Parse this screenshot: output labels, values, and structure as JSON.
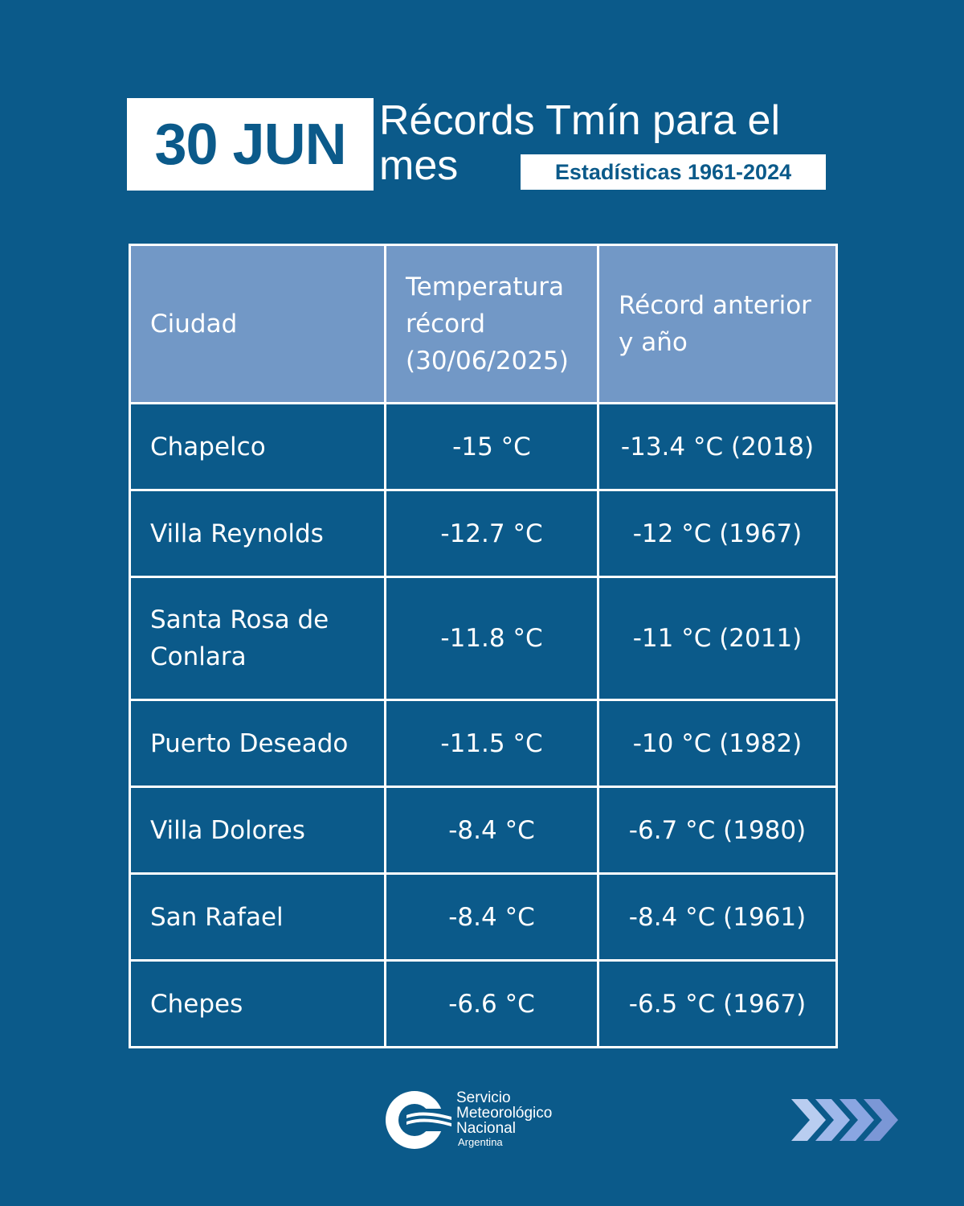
{
  "header": {
    "date": "30 JUN",
    "title": "Récords Tmín para el mes",
    "badge": "Estadísticas 1961-2024"
  },
  "table": {
    "header": [
      "Ciudad",
      "Temperatura récord (30/06/2025)",
      "Récord anterior y año"
    ],
    "rows": [
      [
        "Chapelco",
        "-15 °C",
        "-13.4 °C (2018)"
      ],
      [
        "Villa Reynolds",
        "-12.7 °C",
        "-12 °C (1967)"
      ],
      [
        "Santa Rosa de Conlara",
        "-11.8 °C",
        "-11 °C (2011)"
      ],
      [
        "Puerto Deseado",
        "-11.5 °C",
        "-10 °C (1982)"
      ],
      [
        "Villa Dolores",
        "-8.4 °C",
        "-6.7 °C (1980)"
      ],
      [
        "San Rafael",
        "-8.4 °C",
        "-8.4 °C (1961)"
      ],
      [
        "Chepes",
        "-6.6 °C",
        "-6.5 °C (1967)"
      ]
    ]
  },
  "footer": {
    "org_lines": [
      "Servicio",
      "Meteorológico",
      "Nacional"
    ],
    "country": "Argentina"
  }
}
